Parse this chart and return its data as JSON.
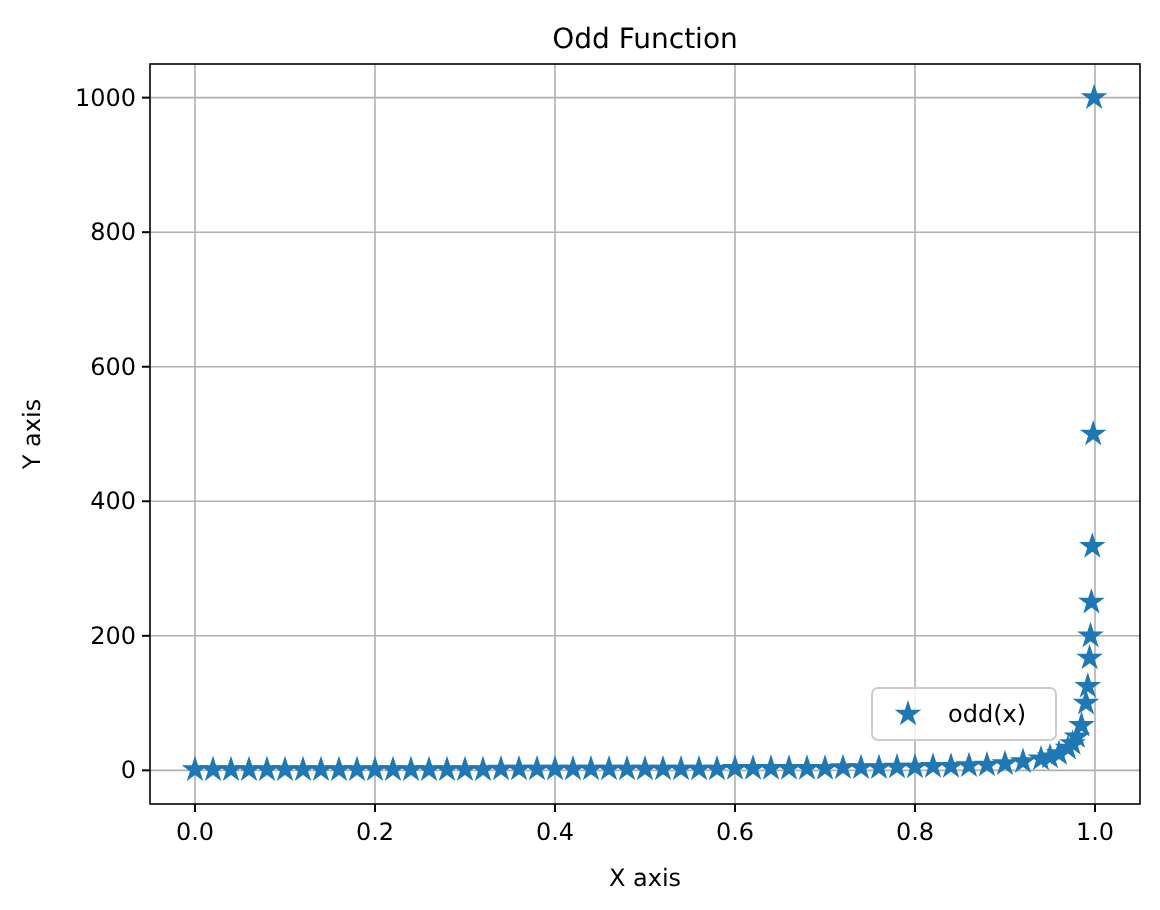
{
  "chart_data": {
    "type": "scatter",
    "title": "Odd Function",
    "xlabel": "X axis",
    "ylabel": "Y axis",
    "x": [
      0,
      0.02,
      0.04,
      0.06,
      0.08,
      0.1,
      0.12,
      0.14,
      0.16,
      0.18,
      0.2,
      0.22,
      0.24,
      0.26,
      0.28,
      0.3,
      0.32,
      0.34,
      0.36,
      0.38,
      0.4,
      0.42,
      0.44,
      0.46,
      0.48,
      0.5,
      0.52,
      0.54,
      0.56,
      0.58,
      0.6,
      0.62,
      0.64,
      0.66,
      0.68,
      0.7,
      0.72,
      0.74,
      0.76,
      0.78,
      0.8,
      0.82,
      0.84,
      0.86,
      0.88,
      0.9,
      0.92,
      0.94,
      0.95,
      0.96,
      0.97,
      0.975,
      0.98,
      0.985,
      0.99,
      0.992,
      0.994,
      0.995,
      0.996,
      0.997,
      0.998,
      0.999
    ],
    "series": [
      {
        "name": "odd(x)",
        "color": "#1f77b4",
        "values": [
          1,
          1,
          1,
          1,
          1,
          1,
          1,
          1,
          1,
          1,
          1,
          1,
          1,
          1,
          1,
          1,
          1,
          2,
          2,
          2,
          2,
          2,
          2,
          2,
          2,
          2,
          2,
          2,
          2,
          2,
          3,
          3,
          3,
          3,
          3,
          3,
          4,
          4,
          4,
          5,
          5,
          6,
          6,
          7,
          8,
          10,
          13,
          17,
          20,
          25,
          33,
          40,
          50,
          67,
          100,
          125,
          167,
          200,
          250,
          333,
          500,
          1000
        ]
      }
    ],
    "xlim": [
      -0.05,
      1.05
    ],
    "xticks": [
      {
        "value": 0,
        "label": "0.0"
      },
      {
        "value": 0.2,
        "label": "0.2"
      },
      {
        "value": 0.4,
        "label": "0.4"
      },
      {
        "value": 0.6,
        "label": "0.6"
      },
      {
        "value": 0.8,
        "label": "0.8"
      },
      {
        "value": 1,
        "label": "1.0"
      }
    ],
    "ylim": [
      -50,
      1050
    ],
    "yticks": [
      0,
      200,
      400,
      600,
      800,
      1000
    ],
    "grid": true,
    "legend": "bottom right",
    "marker": "star"
  }
}
